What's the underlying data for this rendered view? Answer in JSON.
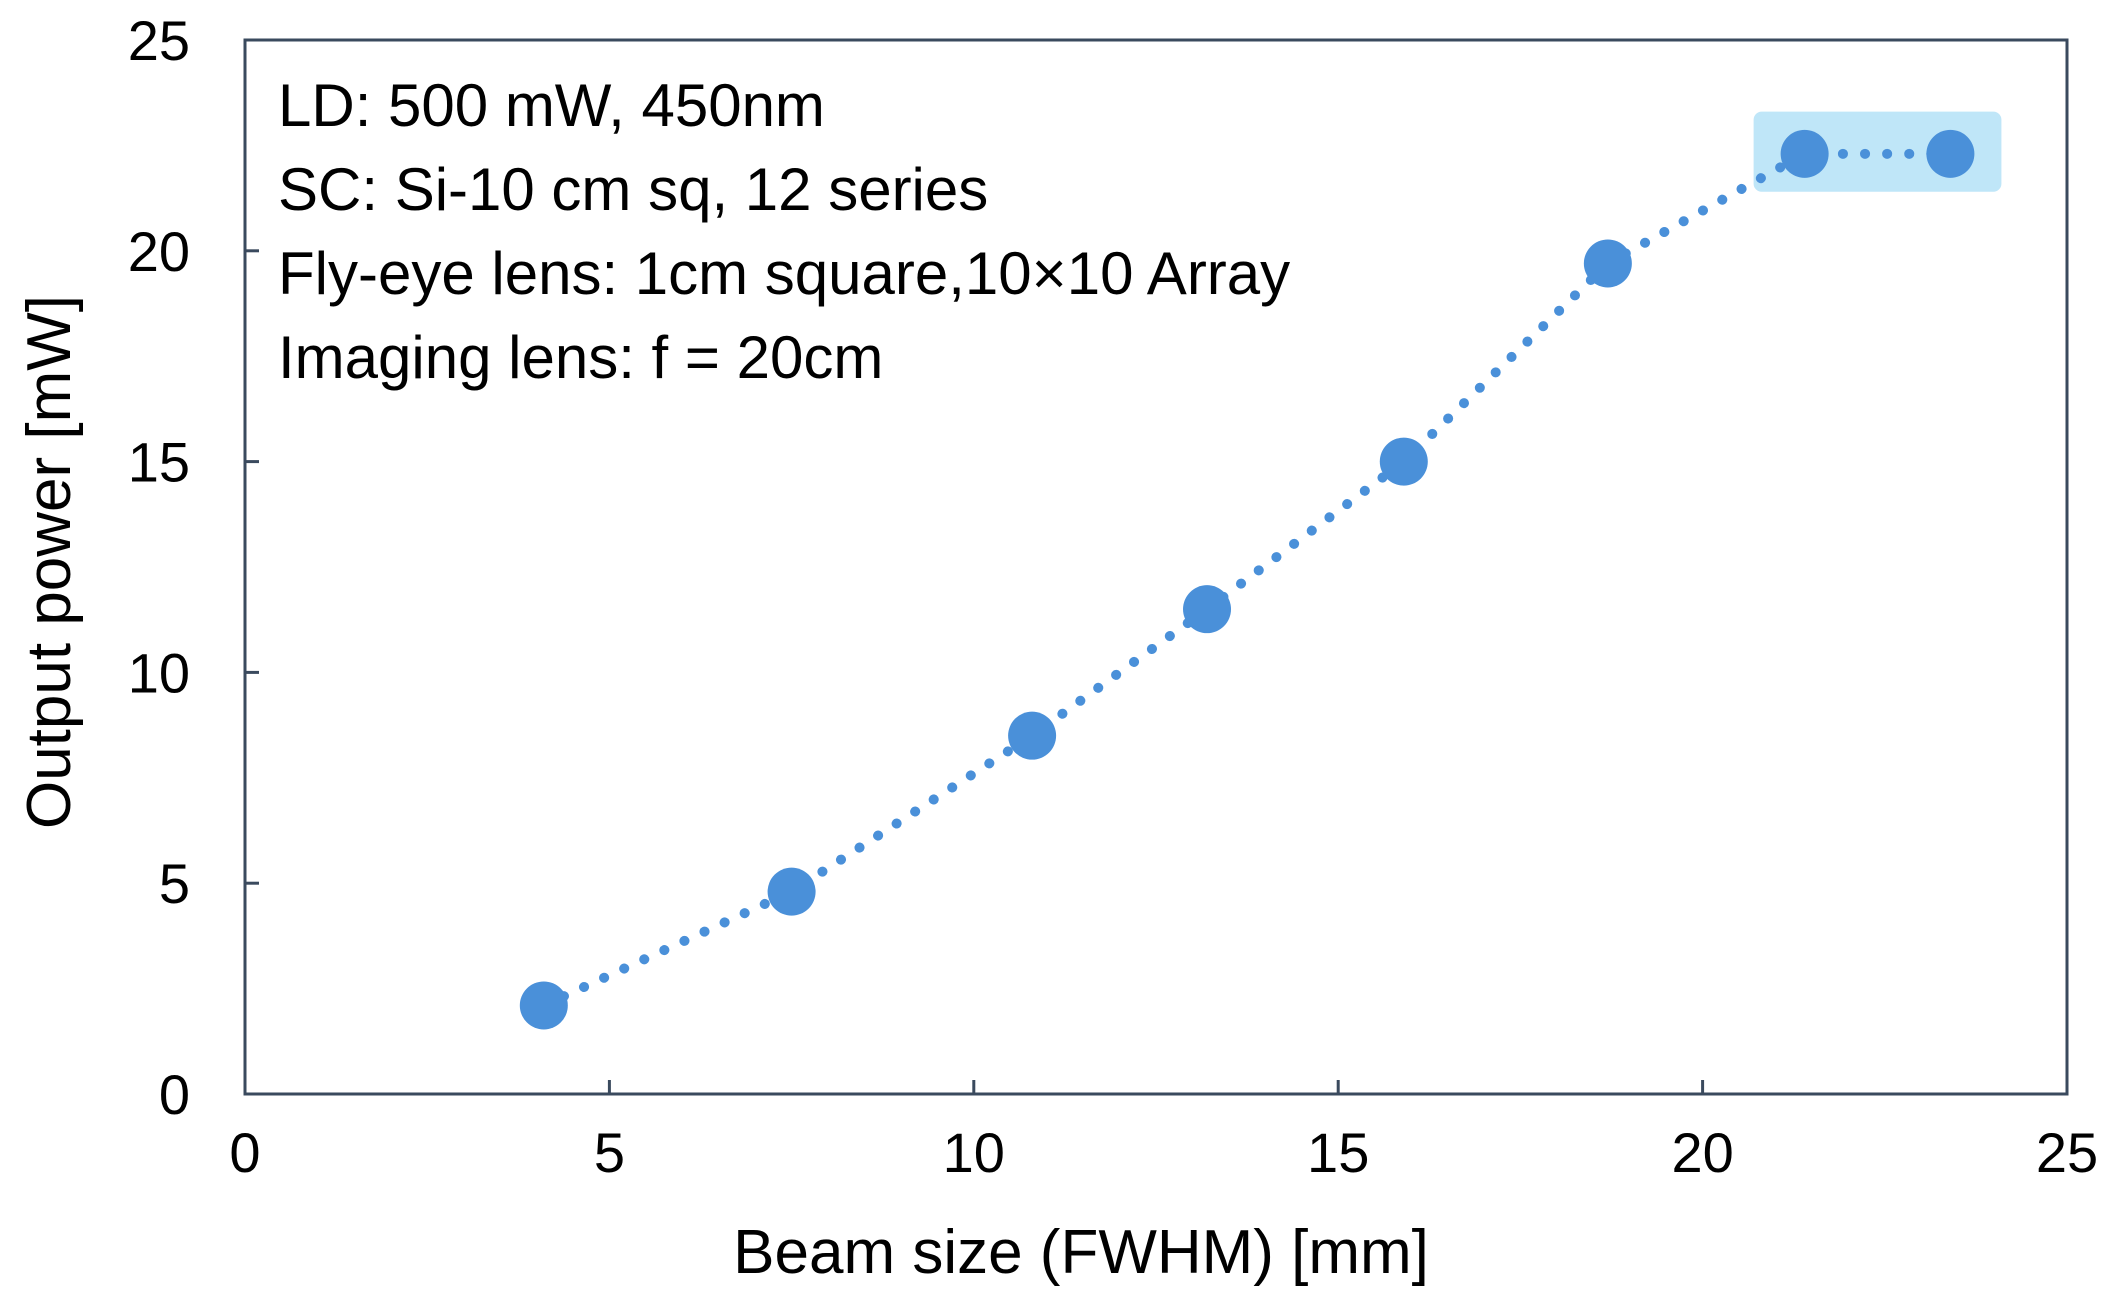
{
  "chart_data": {
    "type": "scatter",
    "title": "",
    "xlabel": "Beam size (FWHM) [mm]",
    "ylabel": "Output power [mW]",
    "xlim": [
      0,
      25
    ],
    "ylim": [
      0,
      25
    ],
    "x_ticks": [
      "0",
      "5",
      "10",
      "15",
      "20",
      "25"
    ],
    "y_ticks": [
      "0",
      "5",
      "10",
      "15",
      "20",
      "25"
    ],
    "grid": false,
    "legend": "none",
    "series": [
      {
        "x": [
          4.1,
          7.5,
          10.8,
          13.2,
          15.9,
          18.7,
          21.4,
          23.4
        ],
        "y": [
          2.1,
          4.8,
          8.5,
          11.5,
          15.0,
          19.7,
          22.3,
          22.3
        ],
        "color": "#4a90d9",
        "marker": "circle",
        "line_style": "dotted"
      }
    ],
    "annotations": [
      "LD: 500 mW, 450nm",
      "SC: Si-10 cm sq, 12 series",
      "Fly-eye lens: 1cm square,10×10 Array",
      "Imaging lens: f = 20cm"
    ],
    "highlight": {
      "x_range": [
        20.7,
        24.1
      ],
      "y_range": [
        21.4,
        23.3
      ],
      "color": "#bfe6f8"
    },
    "axis_color": "#3a4a5e"
  }
}
